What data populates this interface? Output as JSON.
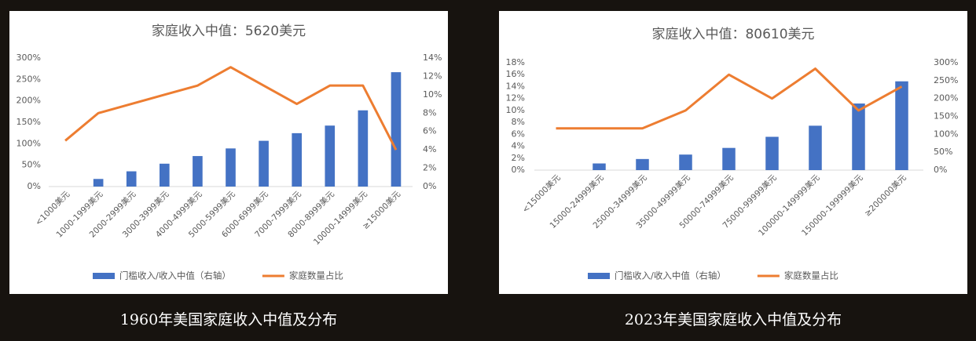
{
  "chart_data": [
    {
      "type": "bar-line",
      "title": "家庭收入中值：5620美元",
      "caption": "1960年美国家庭收入中值及分布",
      "categories": [
        "<1000美元",
        "1000-1999美元",
        "2000-2999美元",
        "3000-3999美元",
        "4000-4999美元",
        "5000-5999美元",
        "6000-6999美元",
        "7000-7999美元",
        "8000-8999美元",
        "10000-14999美元",
        "≥15000美元"
      ],
      "series": [
        {
          "name": "门槛收入/收入中值（右轴）",
          "type": "bar",
          "color": "#4472c4",
          "axis": "y",
          "values": [
            null,
            17.8,
            35.6,
            53.4,
            71.2,
            89,
            106.8,
            124.6,
            142.3,
            177.9,
            266.9
          ]
        },
        {
          "name": "家庭数量占比",
          "type": "line",
          "color": "#ed7d31",
          "axis": "y2",
          "values": [
            5,
            8,
            9,
            10,
            11,
            13,
            11,
            9,
            11,
            11,
            4
          ]
        }
      ],
      "ylim": [
        0,
        300
      ],
      "yticks": [
        {
          "value": 0,
          "label": "0%"
        },
        {
          "value": 50,
          "label": "50%"
        },
        {
          "value": 100,
          "label": "100%"
        },
        {
          "value": 150,
          "label": "150%"
        },
        {
          "value": 200,
          "label": "200%"
        },
        {
          "value": 250,
          "label": "250%"
        },
        {
          "value": 300,
          "label": "300%"
        }
      ],
      "y2lim": [
        0,
        14
      ],
      "y2ticks": [
        {
          "value": 0,
          "label": "0%"
        },
        {
          "value": 2,
          "label": "2%"
        },
        {
          "value": 4,
          "label": "4%"
        },
        {
          "value": 6,
          "label": "6%"
        },
        {
          "value": 8,
          "label": "8%"
        },
        {
          "value": 10,
          "label": "10%"
        },
        {
          "value": 12,
          "label": "12%"
        },
        {
          "value": 14,
          "label": "14%"
        }
      ],
      "grid": false,
      "legend": "bottom"
    },
    {
      "type": "bar-line",
      "title": "家庭收入中值：80610美元",
      "caption": "2023年美国家庭收入中值及分布",
      "categories": [
        "<15000美元",
        "15000-24999美元",
        "25000-34999美元",
        "35000-49999美元",
        "50000-74999美元",
        "75000-99999美元",
        "100000-149999美元",
        "150000-199999美元",
        "≥200000美元"
      ],
      "series": [
        {
          "name": "门槛收入/收入中值（右轴）",
          "type": "bar",
          "color": "#4472c4",
          "axis": "y2",
          "values": [
            null,
            18.6,
            31,
            43.4,
            62,
            93,
            124,
            186,
            248
          ]
        },
        {
          "name": "家庭数量占比",
          "type": "line",
          "color": "#ed7d31",
          "axis": "y",
          "values": [
            7,
            7,
            7,
            10,
            16,
            12,
            17,
            10,
            14
          ]
        }
      ],
      "ylim": [
        0,
        18
      ],
      "yticks": [
        {
          "value": 0,
          "label": "0%"
        },
        {
          "value": 2,
          "label": "2%"
        },
        {
          "value": 4,
          "label": "4%"
        },
        {
          "value": 6,
          "label": "6%"
        },
        {
          "value": 8,
          "label": "8%"
        },
        {
          "value": 10,
          "label": "10%"
        },
        {
          "value": 12,
          "label": "12%"
        },
        {
          "value": 14,
          "label": "14%"
        },
        {
          "value": 16,
          "label": "16%"
        },
        {
          "value": 18,
          "label": "18%"
        }
      ],
      "y2lim": [
        0,
        300
      ],
      "y2ticks": [
        {
          "value": 0,
          "label": "0%"
        },
        {
          "value": 50,
          "label": "50%"
        },
        {
          "value": 100,
          "label": "100%"
        },
        {
          "value": 150,
          "label": "150%"
        },
        {
          "value": 200,
          "label": "200%"
        },
        {
          "value": 250,
          "label": "250%"
        },
        {
          "value": 300,
          "label": "300%"
        }
      ],
      "grid": false,
      "legend": "bottom"
    }
  ]
}
